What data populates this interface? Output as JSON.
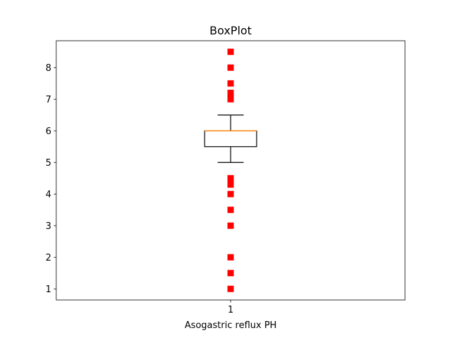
{
  "chart_data": {
    "type": "box",
    "title": "BoxPlot",
    "xlabel": "Asogastric reflux PH",
    "ylabel": "",
    "categories": [
      "1"
    ],
    "yticks": [
      "1",
      "2",
      "3",
      "4",
      "5",
      "6",
      "7",
      "8"
    ],
    "ylim": [
      0.65,
      8.85
    ],
    "grid": false,
    "box": {
      "whisker_low": 5.0,
      "q1": 5.5,
      "median": 6.0,
      "q3": 6.0,
      "whisker_high": 6.5
    },
    "outliers": [
      1.0,
      1.5,
      2.0,
      3.0,
      3.5,
      4.0,
      4.3,
      4.4,
      4.5,
      7.0,
      7.1,
      7.2,
      7.5,
      8.0,
      8.5
    ],
    "colors": {
      "box": "#000000",
      "median": "#ff7f0e",
      "outlier": "#ff0000"
    }
  }
}
